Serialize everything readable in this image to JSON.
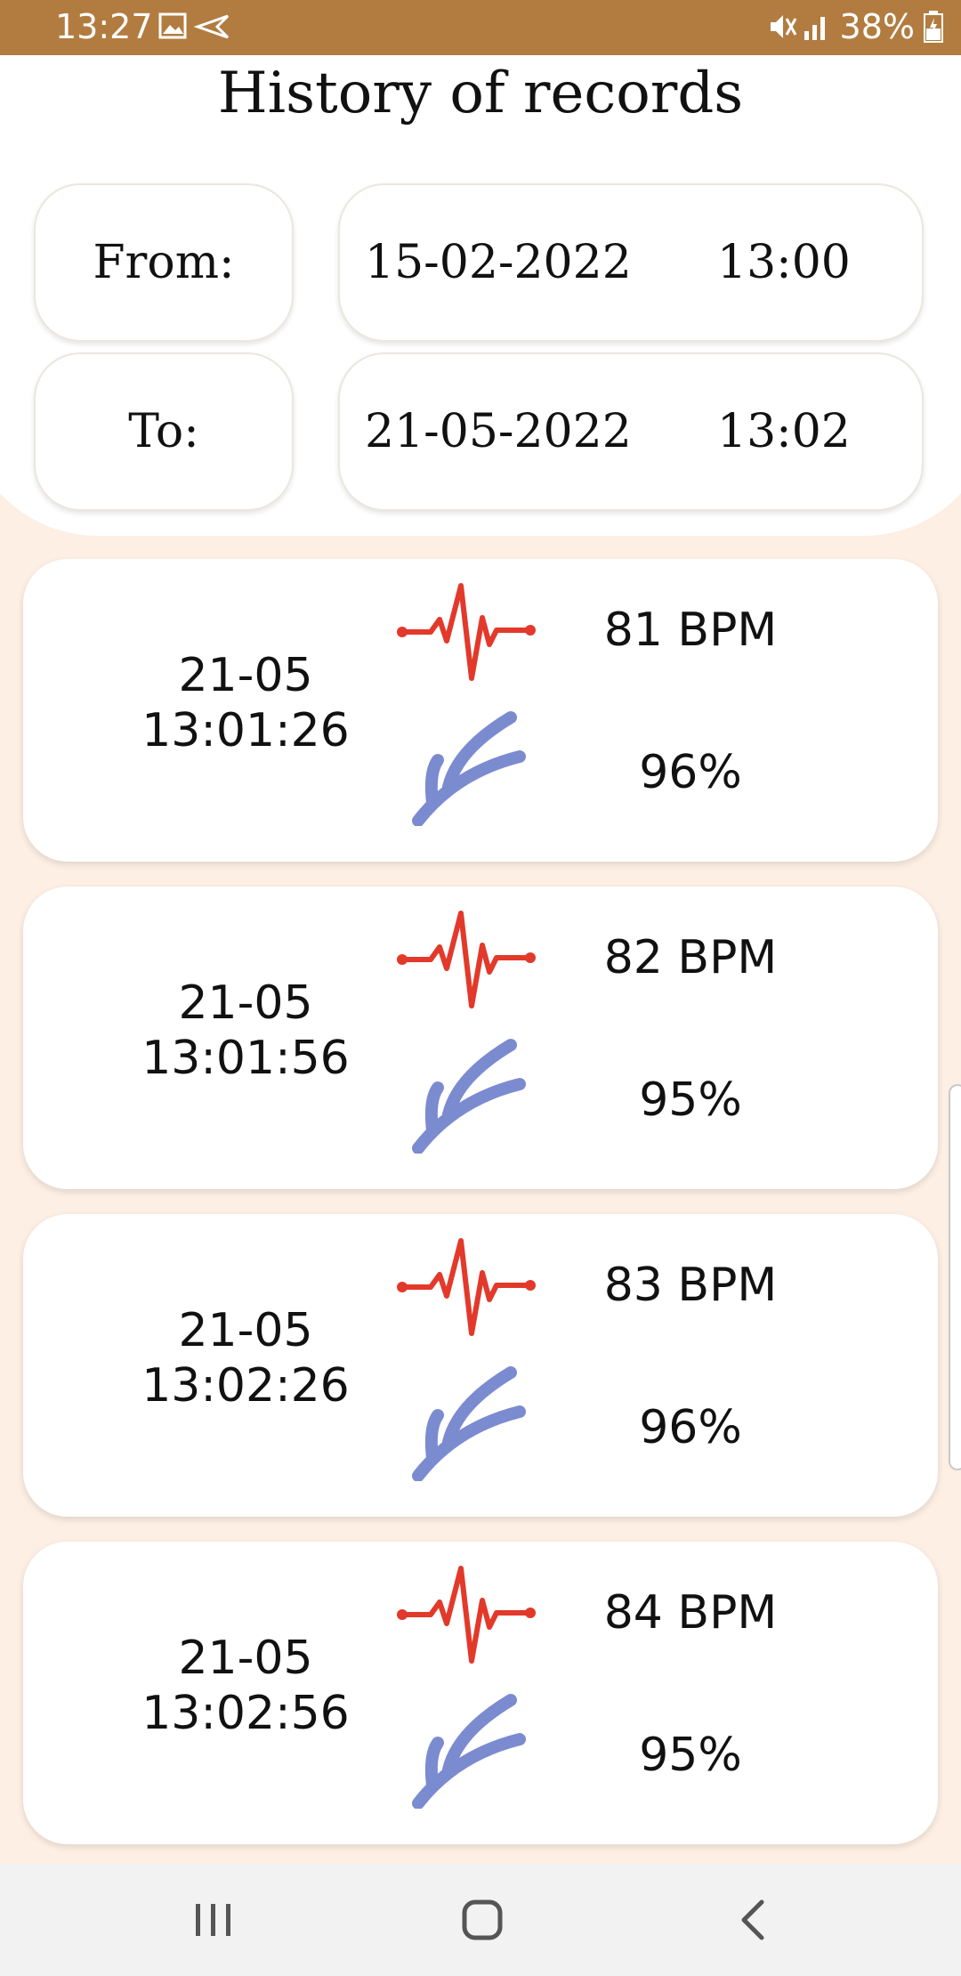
{
  "status_bar": {
    "time": "13:27",
    "battery": "38%"
  },
  "header": {
    "title": "History of records"
  },
  "filter": {
    "from_label": "From:",
    "from_date": "15-02-2022",
    "from_time": "13:00",
    "to_label": "To:",
    "to_date": "21-05-2022",
    "to_time": "13:02"
  },
  "records": [
    {
      "date": "21-05",
      "time": "13:01:26",
      "bpm": "81 BPM",
      "spo2": "96%"
    },
    {
      "date": "21-05",
      "time": "13:01:56",
      "bpm": "82 BPM",
      "spo2": "95%"
    },
    {
      "date": "21-05",
      "time": "13:02:26",
      "bpm": "83 BPM",
      "spo2": "96%"
    },
    {
      "date": "21-05",
      "time": "13:02:56",
      "bpm": "84 BPM",
      "spo2": "95%"
    }
  ],
  "icons": {
    "heart": "heartbeat-icon",
    "spo2": "oxygen-branch-icon"
  },
  "colors": {
    "status_bar": "#b27c40",
    "heart": "#e2392b",
    "spo2": "#7b8bd0",
    "background": "#fdefe3"
  }
}
